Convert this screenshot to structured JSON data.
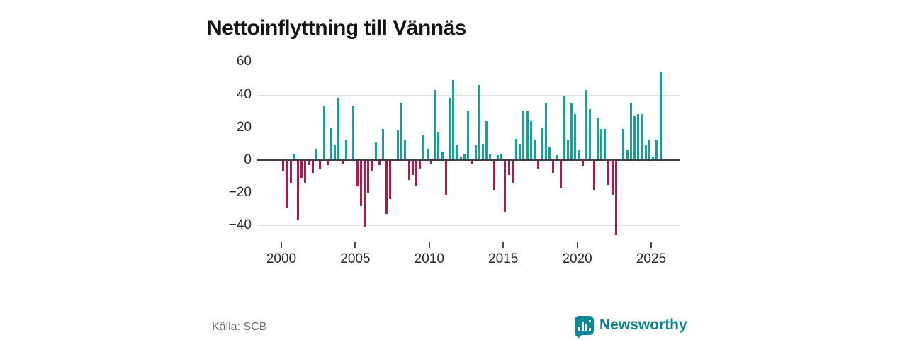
{
  "title": "Nettoinflyttning till Vännäs",
  "source": "Källa: SCB",
  "logo": {
    "text": "Newsworthy"
  },
  "colors": {
    "positive": "#16a198",
    "negative": "#a61d4d",
    "grid": "#e2e2e2",
    "zero_axis": "#3f3f3f",
    "title": "#141414",
    "tick_label": "#2b2b2b",
    "source": "#6f6f6f",
    "logo": "#0c8994"
  },
  "chart_data": {
    "type": "bar",
    "title": "Nettoinflyttning till Vännäs",
    "xlabel": "",
    "ylabel": "",
    "x_unit": "quarter",
    "start_year": 2000,
    "start_quarter": 1,
    "x_ticks": [
      2000,
      2005,
      2010,
      2015,
      2020,
      2025
    ],
    "y_ticks": [
      60,
      40,
      20,
      0,
      -20,
      -40
    ],
    "ylim": [
      -50,
      62
    ],
    "grid": true,
    "legend": false,
    "values": [
      -7,
      -29,
      -14,
      4,
      -37,
      -11,
      -14,
      -3,
      -8,
      7,
      -5,
      33,
      -3,
      20,
      9,
      38,
      -2,
      12,
      0,
      33,
      -16,
      -28,
      -41,
      -20,
      -7,
      11,
      -3,
      19,
      -33,
      -24,
      0,
      18,
      35,
      12,
      -12,
      -9,
      -16,
      -5,
      15,
      7,
      -2,
      43,
      17,
      5,
      -21,
      38,
      49,
      9,
      2,
      4,
      30,
      -2,
      9,
      46,
      10,
      24,
      4,
      -18,
      3,
      4,
      -32,
      -9,
      -14,
      13,
      10,
      30,
      30,
      24,
      12,
      -5,
      20,
      35,
      8,
      -8,
      3,
      -17,
      39,
      12,
      35,
      28,
      6,
      -4,
      43,
      31,
      -18,
      26,
      19,
      19,
      -15,
      -21,
      -46,
      0,
      19,
      6,
      35,
      27,
      28,
      28,
      9,
      12,
      2,
      12,
      54
    ]
  }
}
